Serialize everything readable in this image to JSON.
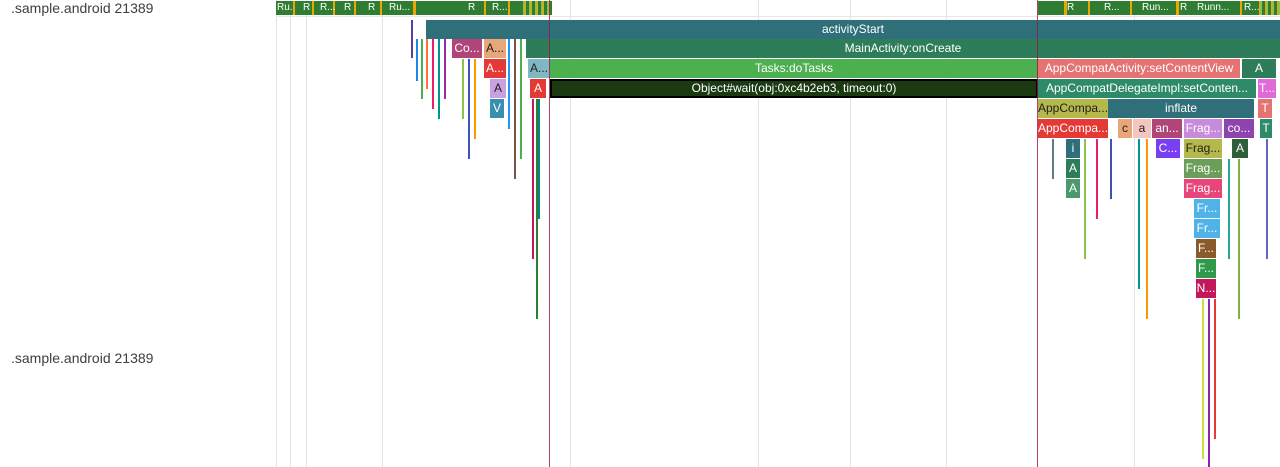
{
  "tracks": {
    "top_label": ".sample.android 21389",
    "bottom_label": ".sample.android 21389"
  },
  "colors": {
    "running": "#2e7d32",
    "runnable": "#f0a500",
    "slice_teal": "#2f6f7a",
    "slice_green": "#2e7d5a",
    "slice_lightgreen": "#4caf50",
    "selected": "#1b3a12",
    "pink": "#e57373",
    "marker": "#a0153e"
  },
  "thread_states": [
    {
      "label": "Ru..."
    },
    {
      "label": "R"
    },
    {
      "label": "R..."
    },
    {
      "label": "R"
    },
    {
      "label": "R"
    },
    {
      "label": "Ru..."
    },
    {
      "label": "R"
    },
    {
      "label": "R..."
    },
    {
      "label": "R"
    },
    {
      "label": "R..."
    },
    {
      "label": "Run..."
    },
    {
      "label": "R"
    },
    {
      "label": "Runn..."
    },
    {
      "label": "R..."
    }
  ],
  "slices": {
    "activity_start": "activityStart",
    "on_create": "MainActivity:onCreate",
    "do_tasks": "Tasks:doTasks",
    "object_wait": "Object#wait(obj:0xc4b2eb3, timeout:0)",
    "set_content_view": "AppCompatActivity:setContentView",
    "delegate_set_content": "AppCompatDelegateImpl:setConten...",
    "appcompat_a": "AppCompa...",
    "appcompat_b": "AppCompa...",
    "inflate": "inflate",
    "small_co": "Co...",
    "small_a1": "A...",
    "small_a2": "A...",
    "small_a3": "A...",
    "small_a4": "A",
    "small_a5": "A",
    "small_v": "V",
    "small_a6": "A",
    "small_t1": "T...",
    "small_t2": "T",
    "small_t3": "T",
    "c": "c",
    "a": "a",
    "an": "an...",
    "frag1": "Frag...",
    "co2": "co...",
    "i": "i",
    "c2": "C...",
    "frag2": "Frag...",
    "a7": "A",
    "a8": "A",
    "frag3": "Frag...",
    "a9": "A",
    "frag4": "Frag...",
    "fr1": "Fr...",
    "fr2": "Fr...",
    "f1": "F...",
    "f2": "F...",
    "n": "N..."
  }
}
